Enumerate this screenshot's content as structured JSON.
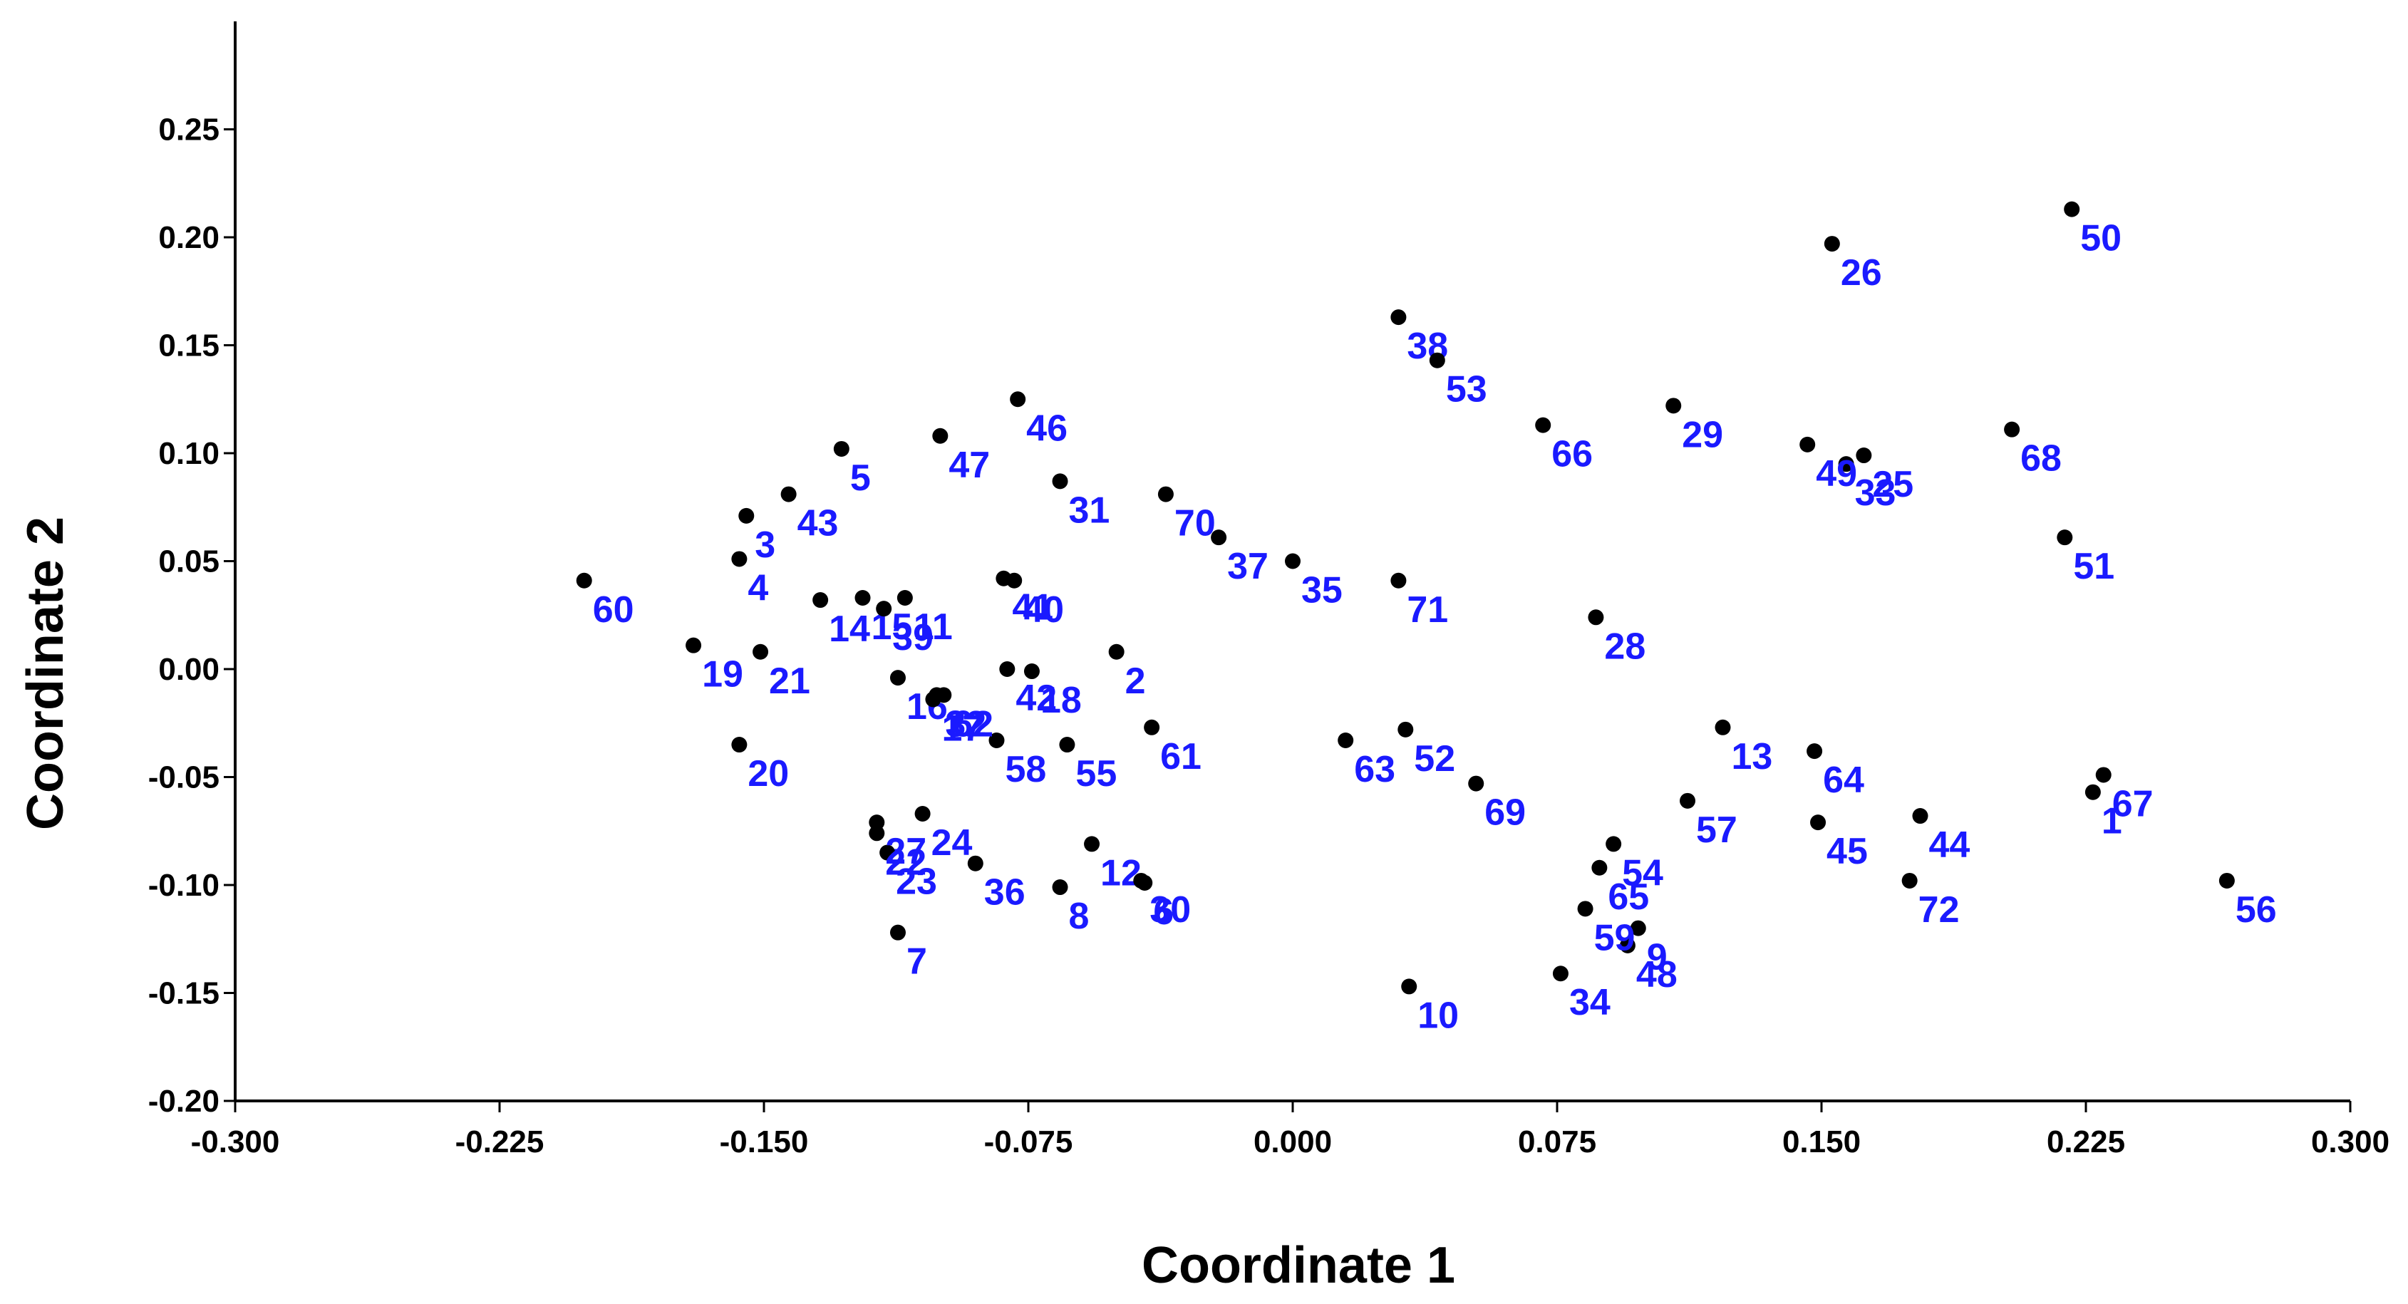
{
  "chart_data": {
    "type": "scatter",
    "xlabel": "Coordinate 1",
    "ylabel": "Coordinate 2",
    "xlim": [
      -0.3,
      0.3
    ],
    "ylim": [
      -0.2,
      0.3
    ],
    "xticks": [
      "-0.300",
      "-0.225",
      "-0.150",
      "-0.075",
      "0.000",
      "0.075",
      "0.150",
      "0.225",
      "0.300"
    ],
    "yticks": [
      "-0.20",
      "-0.15",
      "-0.10",
      "-0.05",
      "0.00",
      "0.05",
      "0.10",
      "0.15",
      "0.20",
      "0.25"
    ],
    "grid": false,
    "point_color": "#000000",
    "label_color": "#1a1aff",
    "points": [
      {
        "label": "1",
        "x": 0.227,
        "y": -0.057
      },
      {
        "label": "2",
        "x": -0.05,
        "y": 0.008
      },
      {
        "label": "3",
        "x": -0.155,
        "y": 0.071
      },
      {
        "label": "4",
        "x": -0.157,
        "y": 0.051
      },
      {
        "label": "5",
        "x": -0.128,
        "y": 0.102
      },
      {
        "label": "6",
        "x": -0.042,
        "y": -0.099
      },
      {
        "label": "7",
        "x": -0.112,
        "y": -0.122
      },
      {
        "label": "8",
        "x": -0.066,
        "y": -0.101
      },
      {
        "label": "9",
        "x": 0.098,
        "y": -0.12
      },
      {
        "label": "10",
        "x": 0.033,
        "y": -0.147
      },
      {
        "label": "11",
        "x": -0.11,
        "y": 0.033
      },
      {
        "label": "12",
        "x": -0.057,
        "y": -0.081
      },
      {
        "label": "13",
        "x": 0.122,
        "y": -0.027
      },
      {
        "label": "14",
        "x": -0.134,
        "y": 0.032
      },
      {
        "label": "15",
        "x": -0.122,
        "y": 0.033
      },
      {
        "label": "16",
        "x": -0.112,
        "y": -0.004
      },
      {
        "label": "17",
        "x": -0.102,
        "y": -0.014
      },
      {
        "label": "18",
        "x": -0.074,
        "y": -0.001
      },
      {
        "label": "19",
        "x": -0.17,
        "y": 0.011
      },
      {
        "label": "20",
        "x": -0.157,
        "y": -0.035
      },
      {
        "label": "21",
        "x": -0.151,
        "y": 0.008
      },
      {
        "label": "22",
        "x": -0.118,
        "y": -0.076
      },
      {
        "label": "23",
        "x": -0.115,
        "y": -0.085
      },
      {
        "label": "24",
        "x": -0.105,
        "y": -0.067
      },
      {
        "label": "25",
        "x": 0.162,
        "y": 0.099
      },
      {
        "label": "26",
        "x": 0.153,
        "y": 0.197
      },
      {
        "label": "27",
        "x": -0.118,
        "y": -0.071
      },
      {
        "label": "28",
        "x": 0.086,
        "y": 0.024
      },
      {
        "label": "29",
        "x": 0.108,
        "y": 0.122
      },
      {
        "label": "30",
        "x": -0.043,
        "y": -0.098
      },
      {
        "label": "31",
        "x": -0.066,
        "y": 0.087
      },
      {
        "label": "32",
        "x": -0.101,
        "y": -0.012
      },
      {
        "label": "33",
        "x": 0.157,
        "y": 0.095
      },
      {
        "label": "34",
        "x": 0.076,
        "y": -0.141
      },
      {
        "label": "35",
        "x": 0.0,
        "y": 0.05
      },
      {
        "label": "36",
        "x": -0.09,
        "y": -0.09
      },
      {
        "label": "37",
        "x": -0.021,
        "y": 0.061
      },
      {
        "label": "38",
        "x": 0.03,
        "y": 0.163
      },
      {
        "label": "39",
        "x": -0.116,
        "y": 0.028
      },
      {
        "label": "40",
        "x": -0.079,
        "y": 0.041
      },
      {
        "label": "41",
        "x": -0.082,
        "y": 0.042
      },
      {
        "label": "42",
        "x": -0.081,
        "y": 0.0
      },
      {
        "label": "43",
        "x": -0.143,
        "y": 0.081
      },
      {
        "label": "44",
        "x": 0.178,
        "y": -0.068
      },
      {
        "label": "45",
        "x": 0.149,
        "y": -0.071
      },
      {
        "label": "46",
        "x": -0.078,
        "y": 0.125
      },
      {
        "label": "47",
        "x": -0.1,
        "y": 0.108
      },
      {
        "label": "48",
        "x": 0.095,
        "y": -0.128
      },
      {
        "label": "49",
        "x": 0.146,
        "y": 0.104
      },
      {
        "label": "50",
        "x": 0.221,
        "y": 0.213
      },
      {
        "label": "51",
        "x": 0.219,
        "y": 0.061
      },
      {
        "label": "52",
        "x": 0.032,
        "y": -0.028
      },
      {
        "label": "53",
        "x": 0.041,
        "y": 0.143
      },
      {
        "label": "54",
        "x": 0.091,
        "y": -0.081
      },
      {
        "label": "55",
        "x": -0.064,
        "y": -0.035
      },
      {
        "label": "56",
        "x": 0.265,
        "y": -0.098
      },
      {
        "label": "57",
        "x": 0.112,
        "y": -0.061
      },
      {
        "label": "58",
        "x": -0.084,
        "y": -0.033
      },
      {
        "label": "59",
        "x": 0.083,
        "y": -0.111
      },
      {
        "label": "60",
        "x": -0.201,
        "y": 0.041
      },
      {
        "label": "61",
        "x": -0.04,
        "y": -0.027
      },
      {
        "label": "62",
        "x": -0.099,
        "y": -0.012
      },
      {
        "label": "63",
        "x": 0.015,
        "y": -0.033
      },
      {
        "label": "64",
        "x": 0.148,
        "y": -0.038
      },
      {
        "label": "65",
        "x": 0.087,
        "y": -0.092
      },
      {
        "label": "66",
        "x": 0.071,
        "y": 0.113
      },
      {
        "label": "67",
        "x": 0.23,
        "y": -0.049
      },
      {
        "label": "68",
        "x": 0.204,
        "y": 0.111
      },
      {
        "label": "69",
        "x": 0.052,
        "y": -0.053
      },
      {
        "label": "70",
        "x": -0.036,
        "y": 0.081
      },
      {
        "label": "71",
        "x": 0.03,
        "y": 0.041
      },
      {
        "label": "72",
        "x": 0.175,
        "y": -0.098
      }
    ]
  }
}
